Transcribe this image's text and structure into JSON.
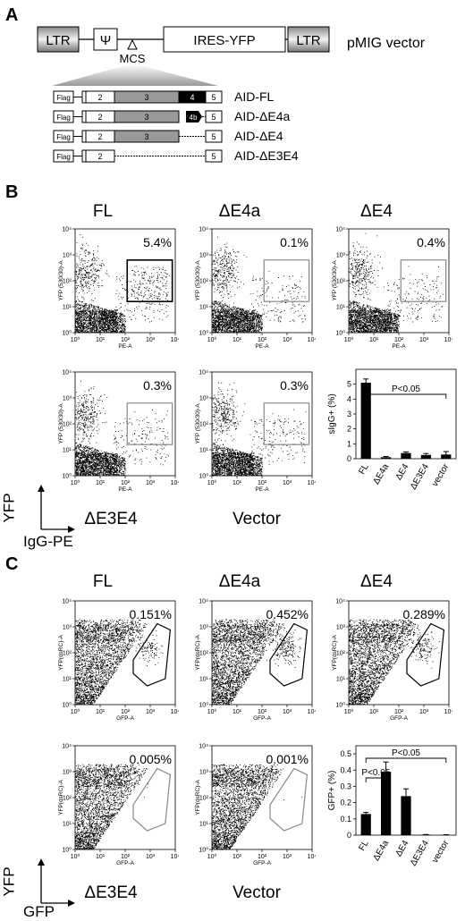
{
  "panels": {
    "a": "A",
    "b": "B",
    "c": "C"
  },
  "vector": {
    "ltr_left": "LTR",
    "psi": "Ψ",
    "mcs": "MCS",
    "ires": "IRES-YFP",
    "ltr_right": "LTR",
    "name": "pMIG vector"
  },
  "constructs": [
    {
      "name": "AID-FL",
      "flag": "Flag",
      "exons": [
        "2",
        "3",
        "4",
        "5"
      ]
    },
    {
      "name": "AID-ΔE4a",
      "flag": "Flag",
      "exons": [
        "2",
        "3",
        "4b",
        "5"
      ]
    },
    {
      "name": "AID-ΔE4",
      "flag": "Flag",
      "exons": [
        "2",
        "3",
        "5"
      ]
    },
    {
      "name": "AID-ΔE3E4",
      "flag": "Flag",
      "exons": [
        "2",
        "5"
      ]
    }
  ],
  "panel_b": {
    "plots": [
      {
        "title": "FL",
        "pct": "5.4%"
      },
      {
        "title": "ΔE4a",
        "pct": "0.1%"
      },
      {
        "title": "ΔE4",
        "pct": "0.4%"
      },
      {
        "title": "ΔE3E4",
        "pct": "0.3%"
      },
      {
        "title": "Vector",
        "pct": "0.3%"
      }
    ],
    "ylabel": "YFP (530/30)-A",
    "xlabel": "PE-A",
    "decades": [
      "10⁰",
      "10¹",
      "10²",
      "10³",
      "10⁴"
    ],
    "axis_y": "YFP",
    "axis_x": "IgG-PE"
  },
  "panel_c": {
    "plots": [
      {
        "title": "FL",
        "pct": "0.151%"
      },
      {
        "title": "ΔE4a",
        "pct": "0.452%"
      },
      {
        "title": "ΔE4",
        "pct": "0.289%"
      },
      {
        "title": "ΔE3E4",
        "pct": "0.005%"
      },
      {
        "title": "Vector",
        "pct": "0.001%"
      }
    ],
    "ylabel": "YFP(dsRC)-A",
    "xlabel": "GFP-A",
    "decades": [
      "10⁰",
      "10¹",
      "10²",
      "10³",
      "10⁴"
    ],
    "axis_y": "YFP",
    "axis_x": "GFP"
  },
  "chart_data": [
    {
      "type": "bar",
      "categories": [
        "FL",
        "ΔE4a",
        "ΔE4",
        "ΔE3E4",
        "vector"
      ],
      "values": [
        5.1,
        0.1,
        0.38,
        0.25,
        0.28
      ],
      "errors": [
        0.25,
        0.05,
        0.08,
        0.1,
        0.2
      ],
      "ylabel": "sIgG+ (%)",
      "ylim": [
        0,
        6
      ],
      "yticks": [
        0,
        1,
        2,
        3,
        4,
        5
      ],
      "annotation": "P<0.05"
    },
    {
      "type": "bar",
      "categories": [
        "FL",
        "ΔE4a",
        "ΔE4",
        "ΔE3E4",
        "vector"
      ],
      "values": [
        0.13,
        0.39,
        0.24,
        0.003,
        0.002
      ],
      "errors": [
        0.01,
        0.06,
        0.045,
        0.001,
        0.001
      ],
      "ylabel": "GFP+ (%)",
      "ylim": [
        0,
        0.55
      ],
      "yticks": [
        "0",
        "0.1",
        "0.2",
        "0.3",
        "0.4",
        "0.5"
      ],
      "annotation_1": "P<0.05",
      "annotation_2": "P<0.05"
    }
  ]
}
